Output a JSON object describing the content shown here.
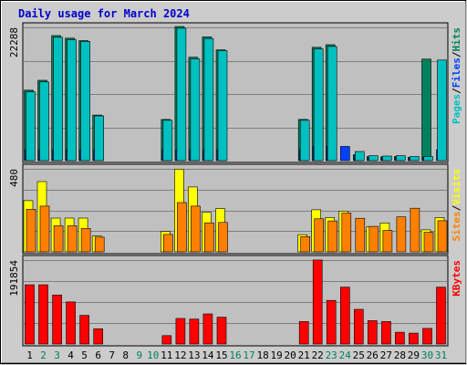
{
  "colors": {
    "background": "#cccccc",
    "panel": "#c0c0c0",
    "grid": "#808080",
    "title": "#0000cc",
    "hits": "#00805c",
    "files": "#0040ff",
    "pages": "#00c0c0",
    "visits": "#ffff00",
    "sites": "#ff8000",
    "kbytes": "#ff0000",
    "weekend": "#00805c",
    "weekday": "#000000"
  },
  "chart_data": {
    "type": "bar",
    "title": "Daily usage for March 2024",
    "categories": [
      "1",
      "2",
      "3",
      "4",
      "5",
      "6",
      "7",
      "8",
      "9",
      "10",
      "11",
      "12",
      "13",
      "14",
      "15",
      "16",
      "17",
      "18",
      "19",
      "20",
      "21",
      "22",
      "23",
      "24",
      "25",
      "26",
      "27",
      "28",
      "29",
      "30",
      "31"
    ],
    "weekend_days": [
      "2",
      "3",
      "9",
      "10",
      "16",
      "17",
      "23",
      "24",
      "30",
      "31"
    ],
    "panels": [
      {
        "id": "hits",
        "max_label": "22288",
        "ylim": [
          0,
          22288
        ],
        "legend": [
          {
            "text": "Pages",
            "color": "#00c0c0"
          },
          {
            "text": "/",
            "color": "#000000"
          },
          {
            "text": "Files",
            "color": "#0040ff"
          },
          {
            "text": "/",
            "color": "#000000"
          },
          {
            "text": "Hits",
            "color": "#00805c"
          }
        ],
        "series": [
          {
            "name": "Hits",
            "color": "#00805c",
            "values": [
              11780,
              13440,
              20910,
              20490,
              20070,
              7620,
              0,
              0,
              0,
              0,
              6880,
              22420,
              17300,
              20700,
              18540,
              0,
              0,
              0,
              0,
              0,
              6880,
              18960,
              19380,
              0,
              970,
              690,
              630,
              690,
              560,
              16970,
              0
            ]
          },
          {
            "name": "Files",
            "color": "#0040ff",
            "values": [
              1810,
              1810,
              1810,
              1810,
              1810,
              1810,
              0,
              0,
              0,
              0,
              1810,
              1810,
              1810,
              1810,
              1810,
              0,
              0,
              0,
              0,
              0,
              1810,
              2360,
              2360,
              2360,
              970,
              560,
              560,
              560,
              560,
              560,
              1810
            ]
          },
          {
            "name": "Pages",
            "color": "#00c0c0",
            "values": [
              11500,
              13160,
              20630,
              20210,
              19930,
              7480,
              0,
              0,
              0,
              0,
              6740,
              22150,
              17020,
              20420,
              18400,
              0,
              0,
              0,
              0,
              0,
              6740,
              18680,
              19100,
              0,
              1530,
              830,
              760,
              830,
              690,
              690,
              16830
            ]
          }
        ]
      },
      {
        "id": "visits",
        "max_label": "480",
        "ylim": [
          0,
          480
        ],
        "legend": [
          {
            "text": "Sites",
            "color": "#ff8000"
          },
          {
            "text": "/",
            "color": "#000000"
          },
          {
            "text": "Visits",
            "color": "#ffff00"
          }
        ],
        "series": [
          {
            "name": "Visits",
            "color": "#ffff00",
            "values": [
              296,
              406,
              195,
              195,
              195,
              91,
              0,
              0,
              0,
              0,
              118,
              478,
              375,
              228,
              250,
              0,
              0,
              0,
              0,
              0,
              99,
              243,
              199,
              235,
              0,
              145,
              167,
              0,
              0,
              127,
              198
            ]
          },
          {
            "name": "Sites",
            "color": "#ff8000",
            "values": [
              246,
              264,
              151,
              151,
              135,
              85,
              0,
              0,
              0,
              0,
              101,
              285,
              264,
              168,
              170,
              0,
              0,
              0,
              0,
              0,
              88,
              191,
              179,
              224,
              194,
              147,
              124,
              202,
              252,
              113,
              180
            ]
          }
        ]
      },
      {
        "id": "kbytes",
        "max_label": "191854",
        "ylim": [
          0,
          191854
        ],
        "legend": [
          {
            "text": "KBytes",
            "color": "#ff0000"
          }
        ],
        "series": [
          {
            "name": "KBytes",
            "color": "#ff0000",
            "values": [
              135400,
              135400,
              112000,
              96100,
              65500,
              34900,
              0,
              0,
              0,
              0,
              19200,
              58400,
              56900,
              68800,
              61400,
              0,
              0,
              0,
              0,
              0,
              51400,
              192000,
              99700,
              130000,
              79300,
              53300,
              51400,
              26800,
              24900,
              35700,
              130000
            ]
          }
        ]
      }
    ]
  }
}
